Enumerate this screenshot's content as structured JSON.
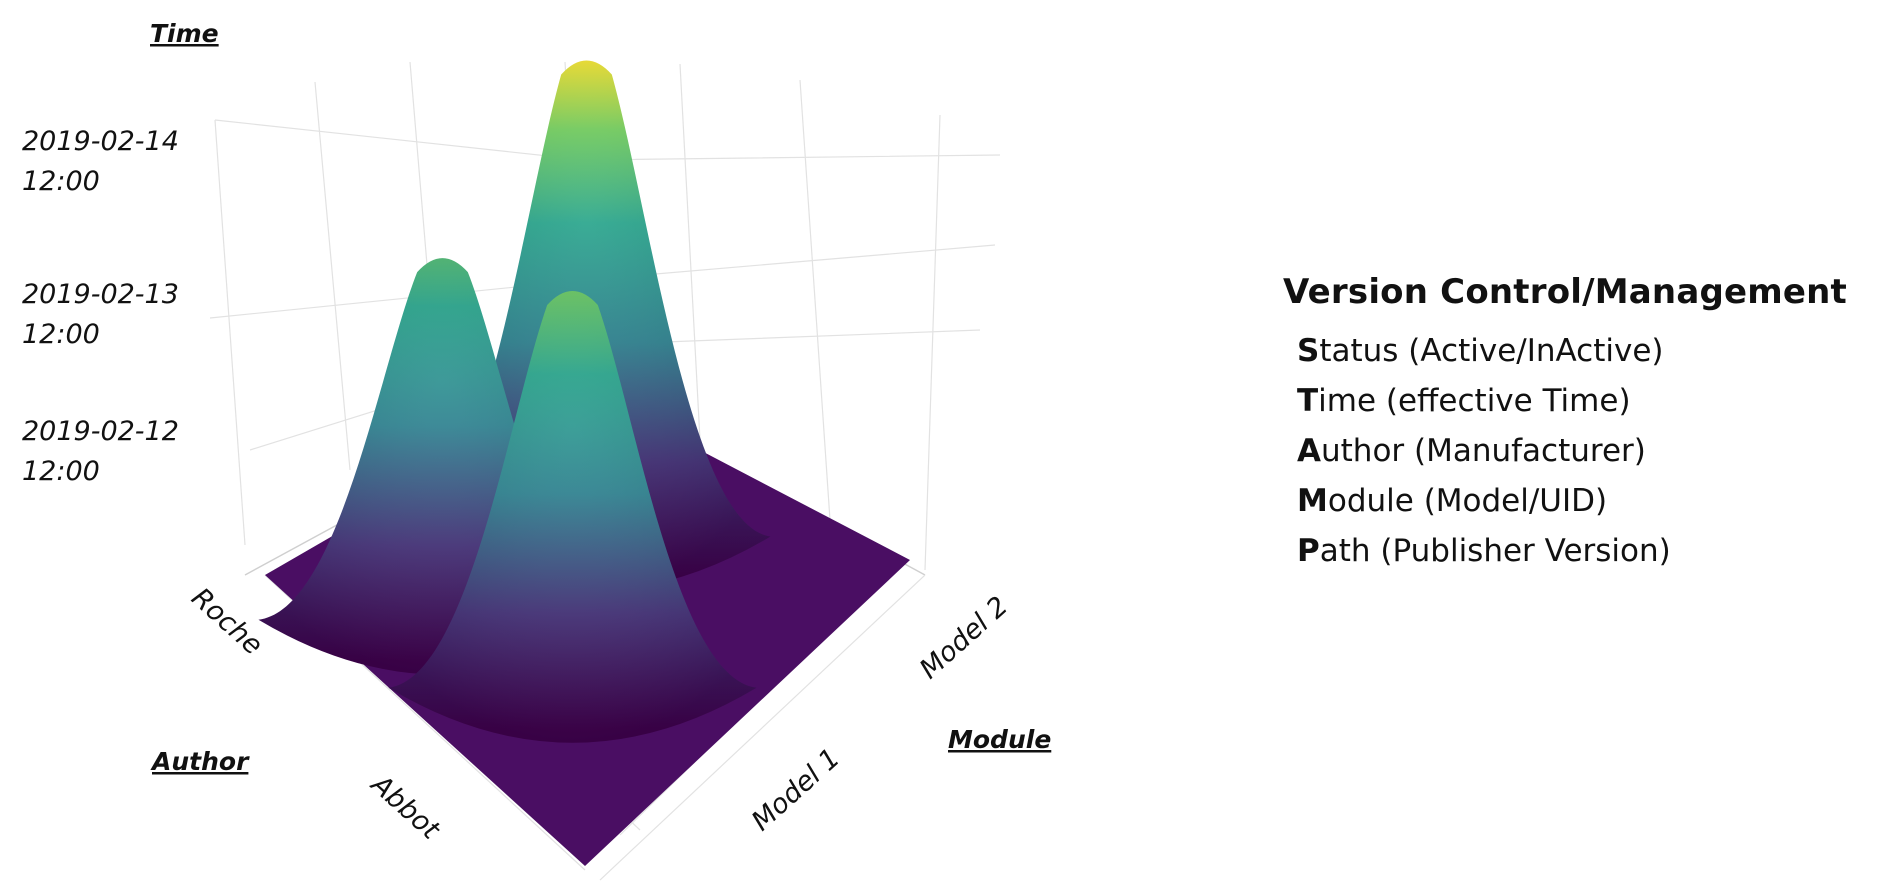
{
  "chart_data": {
    "type": "surface",
    "axes": {
      "time": {
        "title": "Time",
        "ticks": [
          [
            "2019-02-14",
            "12:00"
          ],
          [
            "2019-02-13",
            "12:00"
          ],
          [
            "2019-02-12",
            "12:00"
          ]
        ]
      },
      "author": {
        "title": "Author",
        "ticks": [
          "Roche",
          "Abbot"
        ]
      },
      "module": {
        "title": "Module",
        "ticks": [
          "Model 1",
          "Model 2"
        ]
      }
    },
    "colorscale": "viridis",
    "colors": [
      "#440154",
      "#3b528b",
      "#21908c",
      "#5dc863",
      "#fde725"
    ],
    "peaks": [
      {
        "author": "Roche",
        "module": "Model 1",
        "relative_height": 1.0
      },
      {
        "author": "Abbot",
        "module": "Model 1",
        "relative_height": 0.74
      },
      {
        "author": "Abbot",
        "module": "Model 2",
        "relative_height": 0.82
      }
    ]
  },
  "panel": {
    "title": "Version Control/Management",
    "items": [
      {
        "first": "S",
        "rest": "tatus (Active/InActive)"
      },
      {
        "first": "T",
        "rest": "ime (effective Time)"
      },
      {
        "first": "A",
        "rest": "uthor (Manufacturer)"
      },
      {
        "first": "M",
        "rest": "odule (Model/UID)"
      },
      {
        "first": "P",
        "rest": "ath (Publisher Version)"
      }
    ]
  }
}
